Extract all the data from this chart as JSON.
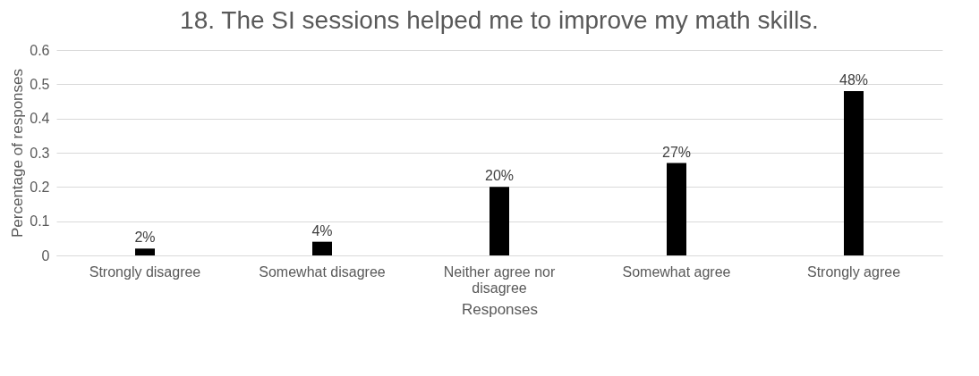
{
  "chart_data": {
    "type": "bar",
    "title": "18. The SI sessions helped me to improve my math skills.",
    "xlabel": "Responses",
    "ylabel": "Percentage of responses",
    "categories": [
      "Strongly disagree",
      "Somewhat disagree",
      "Neither agree nor disagree",
      "Somewhat agree",
      "Strongly agree"
    ],
    "values": [
      0.02,
      0.04,
      0.2,
      0.27,
      0.48
    ],
    "value_labels": [
      "2%",
      "4%",
      "20%",
      "27%",
      "48%"
    ],
    "color": "#000000",
    "ylim": [
      0,
      0.6
    ],
    "yticks": [
      0,
      0.1,
      0.2,
      0.3,
      0.4,
      0.5,
      0.6
    ],
    "grid": "y"
  }
}
